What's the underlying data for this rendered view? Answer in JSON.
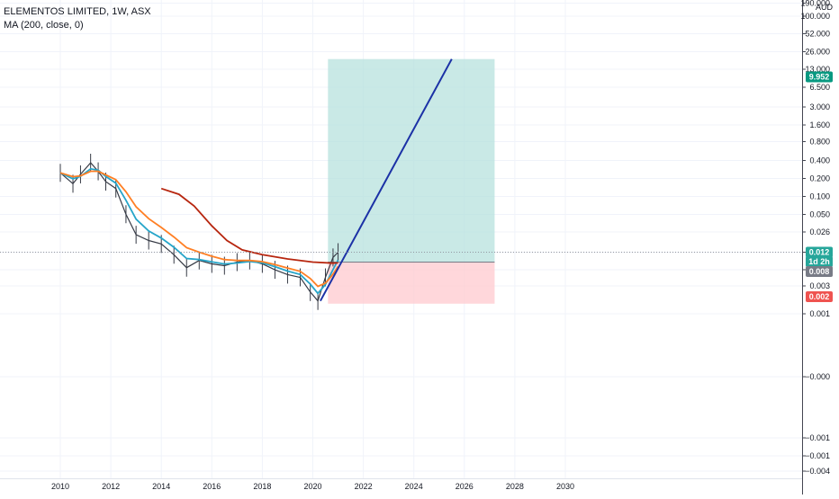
{
  "header": {
    "symbol_line": "ELEMENTOS LIMITED, 1W, ASX",
    "indicator_line": "MA (200, close, 0)"
  },
  "chart_data": {
    "type": "line",
    "scale": "log",
    "currency": "AUD",
    "x_ticks": [
      "2010",
      "2012",
      "2014",
      "2016",
      "2018",
      "2020",
      "2022",
      "2024",
      "2026",
      "2028",
      "2030"
    ],
    "y_ticks": [
      "190.000",
      "100.000",
      "52.000",
      "26.000",
      "13.000",
      "6.500",
      "3.000",
      "1.600",
      "0.800",
      "0.400",
      "0.200",
      "0.100",
      "0.050",
      "0.026",
      "0.012",
      "0.006",
      "0.003",
      "0.001",
      "−0.000",
      "−0.001",
      "−0.001",
      "−0.004"
    ],
    "price_labels": [
      {
        "text": "9.952",
        "color": "#089981"
      },
      {
        "text": "0.012",
        "color": "#26a69a"
      },
      {
        "text": "1d 2h",
        "color": "#26a69a"
      },
      {
        "text": "0.008",
        "color": "#787b86"
      },
      {
        "text": "0.002",
        "color": "#ef5350"
      }
    ],
    "price_series": [
      {
        "x": 2010.0,
        "y": 0.19
      },
      {
        "x": 2010.5,
        "y": 0.13
      },
      {
        "x": 2010.8,
        "y": 0.18
      },
      {
        "x": 2011.2,
        "y": 0.27
      },
      {
        "x": 2011.5,
        "y": 0.2
      },
      {
        "x": 2011.8,
        "y": 0.14
      },
      {
        "x": 2012.2,
        "y": 0.11
      },
      {
        "x": 2012.6,
        "y": 0.045
      },
      {
        "x": 2013.0,
        "y": 0.022
      },
      {
        "x": 2013.5,
        "y": 0.018
      },
      {
        "x": 2014.0,
        "y": 0.016
      },
      {
        "x": 2014.5,
        "y": 0.011
      },
      {
        "x": 2015.0,
        "y": 0.007
      },
      {
        "x": 2015.5,
        "y": 0.009
      },
      {
        "x": 2016.0,
        "y": 0.008
      },
      {
        "x": 2016.5,
        "y": 0.0075
      },
      {
        "x": 2017.0,
        "y": 0.0085
      },
      {
        "x": 2017.5,
        "y": 0.009
      },
      {
        "x": 2018.0,
        "y": 0.008
      },
      {
        "x": 2018.5,
        "y": 0.0065
      },
      {
        "x": 2019.0,
        "y": 0.0055
      },
      {
        "x": 2019.5,
        "y": 0.005
      },
      {
        "x": 2019.9,
        "y": 0.003
      },
      {
        "x": 2020.2,
        "y": 0.0022
      },
      {
        "x": 2020.5,
        "y": 0.005
      },
      {
        "x": 2020.8,
        "y": 0.01
      },
      {
        "x": 2021.0,
        "y": 0.012
      }
    ],
    "ma_series": [
      {
        "x": 2014.0,
        "y": 0.11
      },
      {
        "x": 2014.7,
        "y": 0.09
      },
      {
        "x": 2015.3,
        "y": 0.06
      },
      {
        "x": 2016.0,
        "y": 0.03
      },
      {
        "x": 2016.6,
        "y": 0.018
      },
      {
        "x": 2017.2,
        "y": 0.013
      },
      {
        "x": 2018.0,
        "y": 0.011
      },
      {
        "x": 2019.0,
        "y": 0.0095
      },
      {
        "x": 2020.0,
        "y": 0.0085
      },
      {
        "x": 2020.8,
        "y": 0.0082
      },
      {
        "x": 2021.0,
        "y": 0.0083
      }
    ],
    "trade": {
      "x_start": 2020.6,
      "x_end": 2027.2,
      "entry": 0.0085,
      "target": 9.952,
      "stop": 0.002,
      "projection": [
        {
          "x": 2020.3,
          "y": 0.0022
        },
        {
          "x": 2025.5,
          "y": 9.952
        }
      ]
    },
    "colors": {
      "price": "#363a45",
      "ema_fast": "#26a5c9",
      "ema_slow": "#ff7f24",
      "ma": "#b7260f",
      "projection": "#1b31a6",
      "target_zone": "#b2dfdb",
      "stop_zone": "#ffcdd2"
    }
  }
}
